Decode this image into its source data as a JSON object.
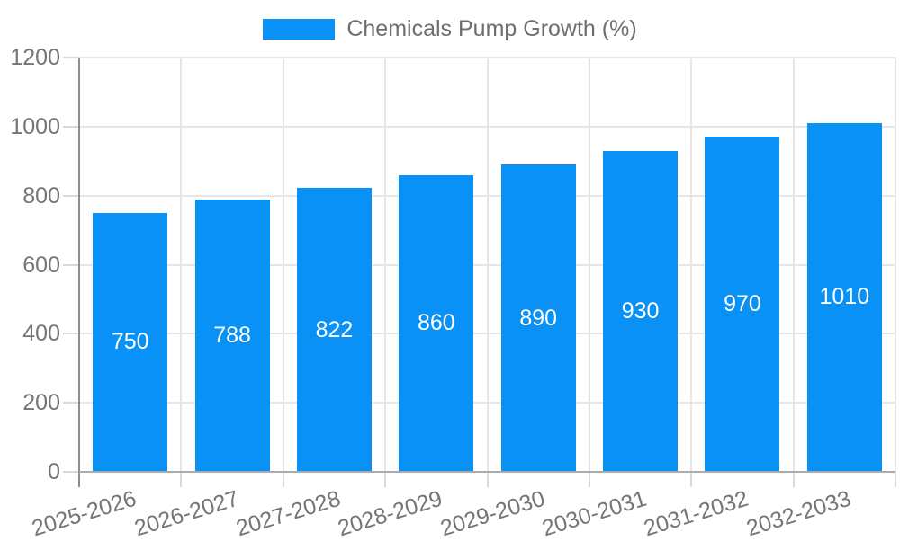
{
  "chart_data": {
    "type": "bar",
    "title": "Chemicals Pump Growth (%)",
    "categories": [
      "2025-2026",
      "2026-2027",
      "2027-2028",
      "2028-2029",
      "2029-2030",
      "2030-2031",
      "2031-2032",
      "2032-2033"
    ],
    "values": [
      750,
      788,
      822,
      860,
      890,
      930,
      970,
      1010
    ],
    "xlabel": "",
    "ylabel": "",
    "ylim": [
      0,
      1200
    ],
    "yticks": [
      0,
      200,
      400,
      600,
      800,
      1000,
      1200
    ],
    "grid": true,
    "legend_position": "top-center",
    "value_labels_inside": true,
    "x_label_rotation_deg": -17,
    "bar_color": "#0991f5",
    "value_label_color": "#ffffff"
  },
  "legend": {
    "items": [
      {
        "label": "Chemicals Pump Growth (%)",
        "color": "#0991f5"
      }
    ]
  },
  "colors": {
    "background": "#ffffff",
    "bar": "#0991f5",
    "grid_line": "#e6e6e6",
    "tick_mark": "#d9d9d9",
    "y_axis_line": "#8c8c8c",
    "x_axis_line": "#ababab",
    "axis_label_text": "#757575",
    "legend_text": "#6e6e6e",
    "value_label_text": "#ffffff"
  }
}
